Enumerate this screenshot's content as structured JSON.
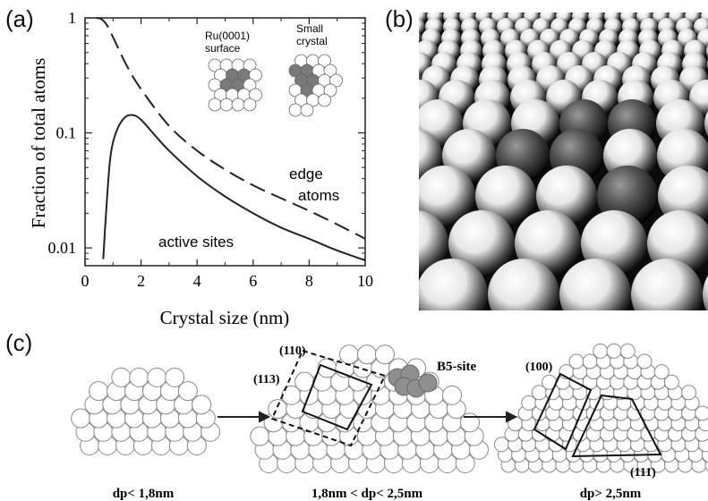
{
  "panels": {
    "a": {
      "label": "(a)"
    },
    "b": {
      "label": "(b)"
    },
    "c": {
      "label": "(c)"
    }
  },
  "chart_data": {
    "type": "line",
    "xlabel": "Crystal size (nm)",
    "ylabel": "Fraction of total atoms",
    "xlim": [
      0,
      10
    ],
    "ylim": [
      0.007,
      1
    ],
    "yscale": "log",
    "xticks": [
      "0",
      "2",
      "4",
      "6",
      "8",
      "10"
    ],
    "yticks": [
      "1",
      "0.1",
      "0.01"
    ],
    "inset_labels": {
      "surface": "Ru(0001)\nsurface",
      "crystal": "Small\ncrystal"
    },
    "series": [
      {
        "name": "edge atoms",
        "style": "dashed",
        "x": [
          0.4,
          0.6,
          0.8,
          1.0,
          1.5,
          2.0,
          3.0,
          4.0,
          5.0,
          6.0,
          7.0,
          8.0,
          9.0,
          10.0
        ],
        "y": [
          1.0,
          0.97,
          0.85,
          0.68,
          0.38,
          0.24,
          0.115,
          0.07,
          0.048,
          0.035,
          0.027,
          0.021,
          0.016,
          0.012
        ]
      },
      {
        "name": "active sites",
        "style": "solid",
        "x": [
          0.65,
          0.75,
          0.9,
          1.1,
          1.4,
          1.7,
          2.0,
          2.5,
          3.0,
          4.0,
          5.0,
          6.0,
          7.0,
          8.0,
          9.0,
          10.0
        ],
        "y": [
          0.008,
          0.02,
          0.06,
          0.1,
          0.135,
          0.143,
          0.13,
          0.095,
          0.07,
          0.042,
          0.028,
          0.02,
          0.015,
          0.012,
          0.0095,
          0.0078
        ]
      }
    ],
    "series_labels": {
      "edge": "edge\natoms",
      "active": "active sites"
    }
  },
  "diagram_c": {
    "stages": [
      {
        "size_label": "dp< 1,8nm"
      },
      {
        "size_label": "1,8nm < dp< 2,5nm",
        "facets": [
          "(110)",
          "(113)"
        ],
        "site_label": "B5-site"
      },
      {
        "size_label": "dp> 2,5nm",
        "facets": [
          "(100)",
          "(111)"
        ]
      }
    ]
  },
  "colors": {
    "line": "#222222",
    "dark_atom": "#555555",
    "light_atom": "#ffffff"
  }
}
